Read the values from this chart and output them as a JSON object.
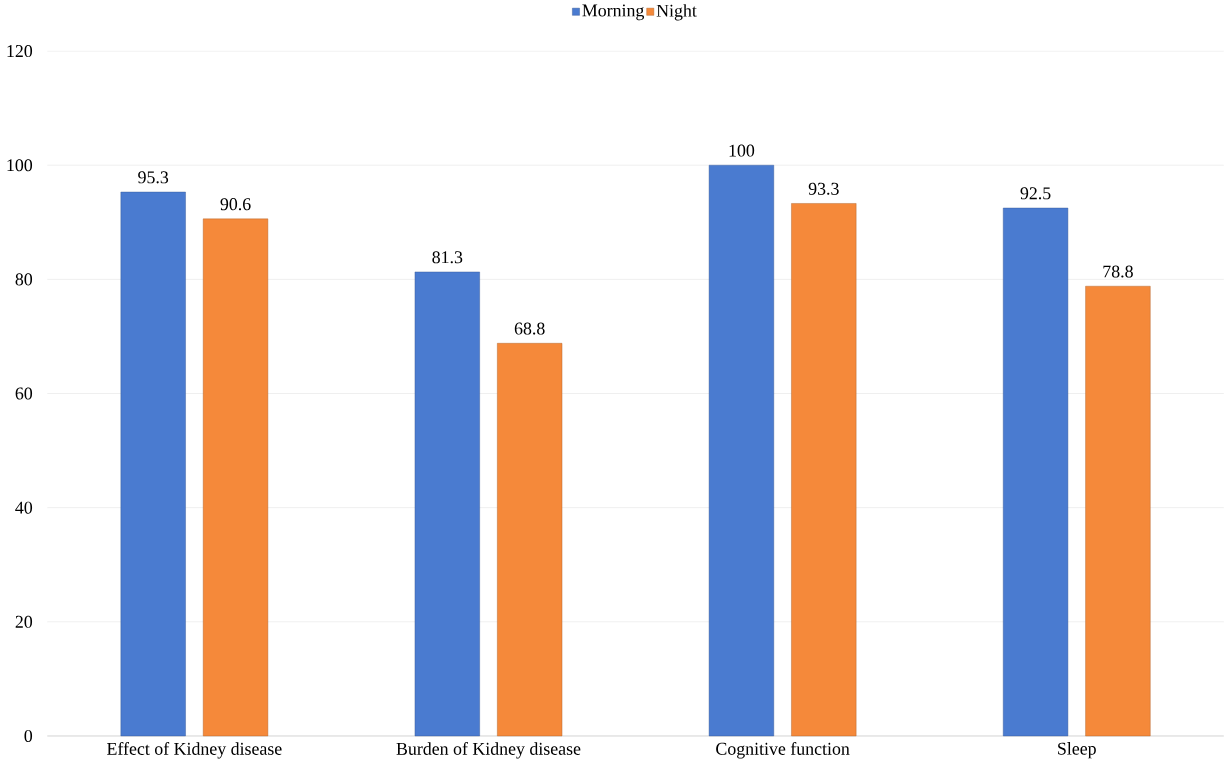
{
  "chart_data": {
    "type": "bar",
    "categories": [
      "Effect of Kidney disease",
      "Burden of Kidney disease",
      "Cognitive function",
      "Sleep"
    ],
    "series": [
      {
        "name": "Morning",
        "color": "#4a7bd0",
        "values": [
          95.3,
          81.3,
          100,
          92.5
        ]
      },
      {
        "name": "Night",
        "color": "#f5893a",
        "values": [
          90.6,
          68.8,
          93.3,
          78.8
        ]
      }
    ],
    "ylim": [
      0,
      120
    ],
    "yticks": [
      0,
      20,
      40,
      60,
      80,
      100,
      120
    ],
    "grid": "y",
    "legend": "top",
    "data_labels": true
  }
}
